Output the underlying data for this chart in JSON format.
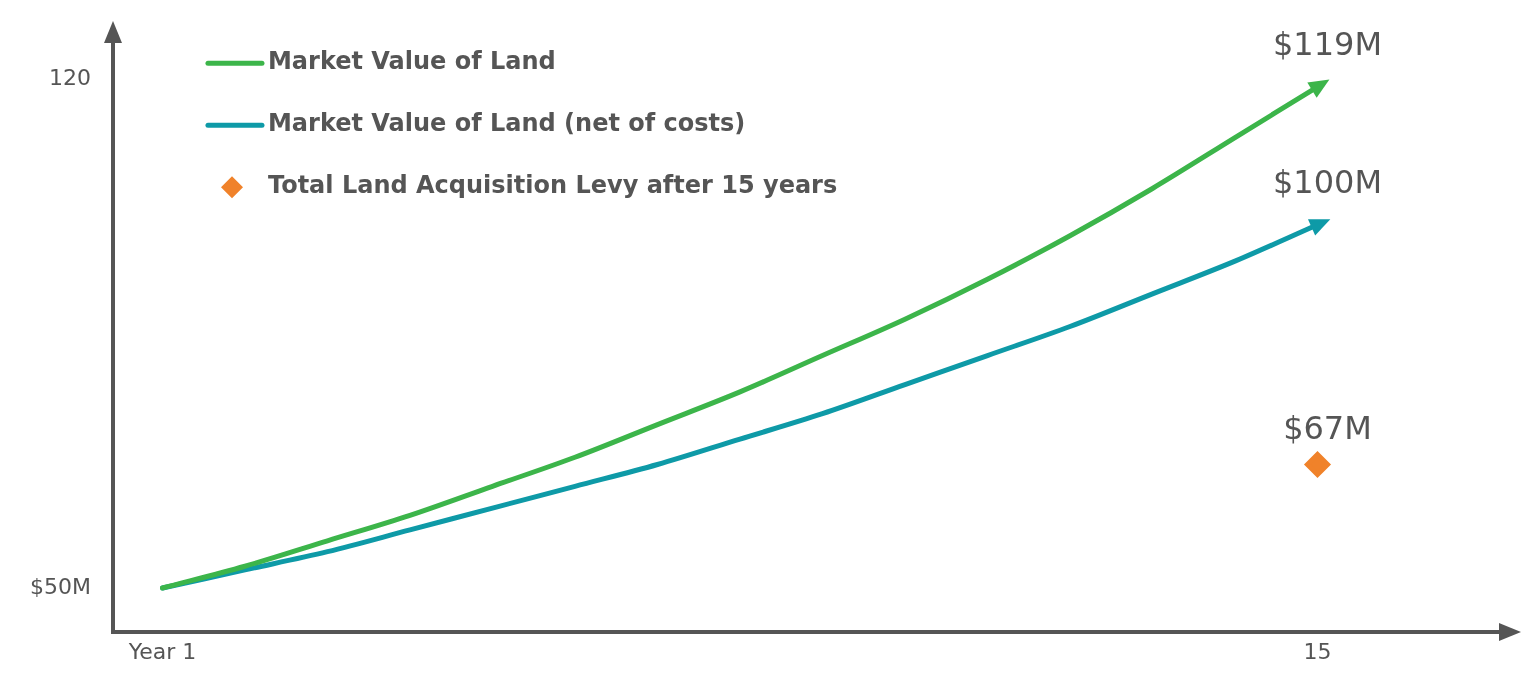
{
  "chart_data": {
    "type": "line",
    "categories": [
      "Year 1",
      null,
      null,
      null,
      null,
      null,
      null,
      null,
      null,
      null,
      null,
      null,
      null,
      null,
      "15"
    ],
    "ylim": [
      44,
      125
    ],
    "yticks": [
      {
        "value": 50,
        "label": "$50M"
      },
      120
    ],
    "grid": false,
    "legend": "top left",
    "series": [
      {
        "name": "Market Value of Land",
        "color": "#3cb54a",
        "marker": "none",
        "values": [
          50,
          53,
          56.5,
          60,
          64,
          68,
          72.5,
          77,
          82,
          87,
          92.5,
          98.5,
          105,
          112,
          119
        ],
        "value_labels": [
          null,
          null,
          null,
          null,
          null,
          null,
          null,
          null,
          null,
          null,
          null,
          null,
          null,
          null,
          "$119M"
        ]
      },
      {
        "name": "Market Value of Land (net of costs)",
        "color": "#0e9aa7",
        "marker": "none",
        "values": [
          50,
          52.5,
          55,
          58,
          61,
          64,
          67,
          70.5,
          74,
          78,
          82,
          86,
          90.5,
          95,
          100
        ],
        "value_labels": [
          null,
          null,
          null,
          null,
          null,
          null,
          null,
          null,
          null,
          null,
          null,
          null,
          null,
          null,
          "$100M"
        ]
      },
      {
        "name": "Total Land Acquisition Levy after 15 years",
        "type": "scatter",
        "color": "#f0822a",
        "marker": "diamond",
        "x": [
          "15"
        ],
        "values": [
          67
        ],
        "value_labels": [
          "$67M"
        ]
      }
    ]
  }
}
